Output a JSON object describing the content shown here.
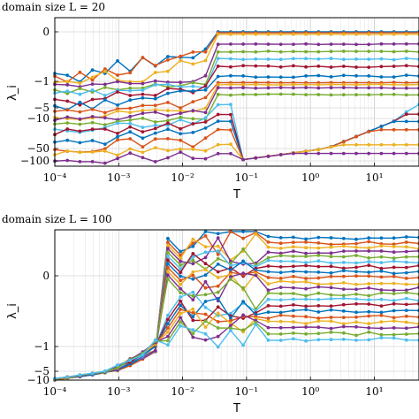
{
  "chart_data": [
    {
      "type": "line",
      "title": "domain size L = 20",
      "xlabel": "T",
      "ylabel": "λ_i",
      "xscale": "log",
      "xlim": [
        0.0001,
        50
      ],
      "x_ticks": [
        0.0001,
        0.001,
        0.01,
        0.1,
        1,
        10
      ],
      "x_tick_labels": [
        "10⁻⁴",
        "10⁻³",
        "10⁻²",
        "10⁻¹",
        "10⁰",
        "10¹"
      ],
      "y_ticks": [
        0,
        -1,
        -5,
        -10,
        -50,
        -100
      ],
      "y_tick_labels": [
        "0",
        "−1",
        "−5",
        "−10",
        "−50",
        "−100"
      ],
      "grid": true,
      "legend": "none",
      "n_series": 18,
      "series_values": "estimated from the plot; each curve is a Lyapunov exponent vs temperature T",
      "curves": [
        {
          "high_T_value": 0,
          "low_T_value": -0.95,
          "color": "#0072BD"
        },
        {
          "high_T_value": -0.02,
          "low_T_value": -1.0,
          "color": "#D95319"
        },
        {
          "high_T_value": -0.05,
          "low_T_value": -1.3,
          "color": "#EDB120"
        },
        {
          "high_T_value": -0.25,
          "low_T_value": -1.6,
          "color": "#7E2F8E"
        },
        {
          "high_T_value": -0.4,
          "low_T_value": -2.5,
          "color": "#77AC30"
        },
        {
          "high_T_value": -0.55,
          "low_T_value": -3.0,
          "color": "#4DBEEE"
        },
        {
          "high_T_value": -0.7,
          "low_T_value": -4.0,
          "color": "#A2142F"
        },
        {
          "high_T_value": -0.9,
          "low_T_value": -5.0,
          "color": "#0072BD"
        },
        {
          "high_T_value": -1.2,
          "low_T_value": -7.0,
          "color": "#D95319"
        },
        {
          "high_T_value": -1.5,
          "low_T_value": -10.0,
          "color": "#EDB120"
        },
        {
          "high_T_value": -2.0,
          "low_T_value": -13.0,
          "color": "#7E2F8E"
        },
        {
          "high_T_value": -3.0,
          "low_T_value": -18.0,
          "color": "#77AC30"
        },
        {
          "high_T_value": -4.5,
          "low_T_value": -25.0,
          "color": "#4DBEEE"
        },
        {
          "high_T_value": -8.0,
          "low_T_value": -32.0,
          "color": "#A2142F"
        },
        {
          "high_T_value": -14.0,
          "low_T_value": -42.0,
          "color": "#0072BD"
        },
        {
          "high_T_value": -25.0,
          "low_T_value": -55.0,
          "color": "#D95319"
        },
        {
          "high_T_value": -45.0,
          "low_T_value": -75.0,
          "color": "#EDB120"
        },
        {
          "high_T_value": -70.0,
          "low_T_value": -100.0,
          "color": "#7E2F8E"
        }
      ]
    },
    {
      "type": "line",
      "title": "domain size L = 100",
      "xlabel": "T",
      "ylabel": "λ_i",
      "xscale": "log",
      "xlim": [
        0.0001,
        50
      ],
      "x_ticks": [
        0.0001,
        0.001,
        0.01,
        0.1,
        1,
        10
      ],
      "x_tick_labels": [
        "10⁻⁴",
        "10⁻³",
        "10⁻²",
        "10⁻¹",
        "10⁰",
        "10¹"
      ],
      "y_ticks": [
        0,
        -1,
        -5,
        -10
      ],
      "y_tick_labels": [
        "0",
        "−1",
        "−5",
        "−10"
      ],
      "grid": true,
      "legend": "none",
      "n_series": 20,
      "series_values": "estimated from the plot; each curve is a Lyapunov exponent vs temperature T",
      "curves": [
        {
          "high_T_value": 0.6,
          "color": "#0072BD"
        },
        {
          "high_T_value": 0.52,
          "color": "#D95319"
        },
        {
          "high_T_value": 0.45,
          "color": "#EDB120"
        },
        {
          "high_T_value": 0.38,
          "color": "#7E2F8E"
        },
        {
          "high_T_value": 0.3,
          "color": "#77AC30"
        },
        {
          "high_T_value": 0.22,
          "color": "#4DBEEE"
        },
        {
          "high_T_value": 0.14,
          "color": "#A2142F"
        },
        {
          "high_T_value": 0.06,
          "color": "#0072BD"
        },
        {
          "high_T_value": -0.02,
          "color": "#D95319"
        },
        {
          "high_T_value": -0.1,
          "color": "#EDB120"
        },
        {
          "high_T_value": -0.18,
          "color": "#7E2F8E"
        },
        {
          "high_T_value": -0.26,
          "color": "#77AC30"
        },
        {
          "high_T_value": -0.34,
          "color": "#4DBEEE"
        },
        {
          "high_T_value": -0.42,
          "color": "#A2142F"
        },
        {
          "high_T_value": -0.5,
          "color": "#0072BD"
        },
        {
          "high_T_value": -0.58,
          "color": "#D95319"
        },
        {
          "high_T_value": -0.66,
          "color": "#EDB120"
        },
        {
          "high_T_value": -0.74,
          "color": "#7E2F8E"
        },
        {
          "high_T_value": -0.82,
          "color": "#77AC30"
        },
        {
          "high_T_value": -0.9,
          "color": "#4DBEEE"
        }
      ]
    }
  ]
}
